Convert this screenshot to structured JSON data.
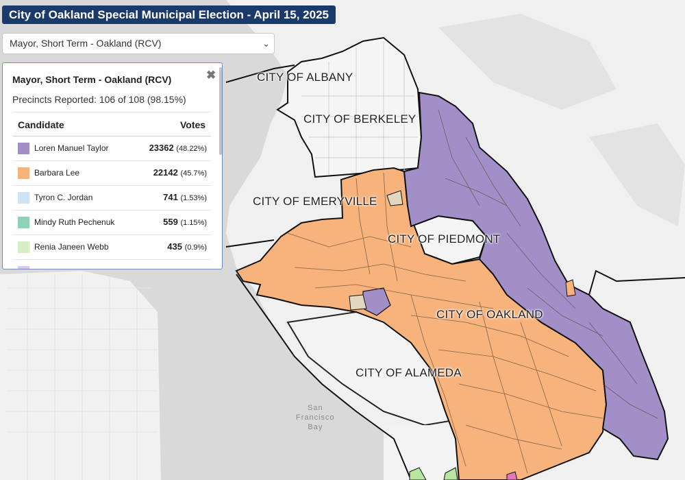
{
  "header": {
    "title": "City of Oakland Special Municipal Election - April 15, 2025"
  },
  "contest_select": {
    "selected": "Mayor, Short Term - Oakland (RCV)"
  },
  "panel": {
    "title": "Mayor, Short Term - Oakland (RCV)",
    "precincts": "Precincts Reported: 106 of 108 (98.15%)",
    "col_candidate": "Candidate",
    "col_votes": "Votes",
    "close_symbol": "✖",
    "rows": [
      {
        "name": "Loren Manuel Taylor",
        "votes": "23362",
        "pct": "(48.22%)",
        "color": "#a38fc8"
      },
      {
        "name": "Barbara Lee",
        "votes": "22142",
        "pct": "(45.7%)",
        "color": "#f7b37b"
      },
      {
        "name": "Tyron C. Jordan",
        "votes": "741",
        "pct": "(1.53%)",
        "color": "#cfe3f3"
      },
      {
        "name": "Mindy Ruth Pechenuk",
        "votes": "559",
        "pct": "(1.15%)",
        "color": "#8fd0b7"
      },
      {
        "name": "Renia Janeen Webb",
        "votes": "435",
        "pct": "(0.9%)",
        "color": "#d6eec3"
      }
    ]
  },
  "map": {
    "labels": {
      "albany": "CITY OF ALBANY",
      "berkeley": "CITY OF BERKELEY",
      "emeryville": "CITY OF EMERYVILLE",
      "piedmont": "CITY OF PIEDMONT",
      "oakland": "CITY OF OAKLAND",
      "alameda": "CITY OF ALAMEDA"
    },
    "water_label": "San\nFrancisco\nBay",
    "colors": {
      "taylor": "#a38fc8",
      "lee": "#f7b37b",
      "land": "#f2f2f2",
      "water": "#d9d9d9"
    }
  }
}
